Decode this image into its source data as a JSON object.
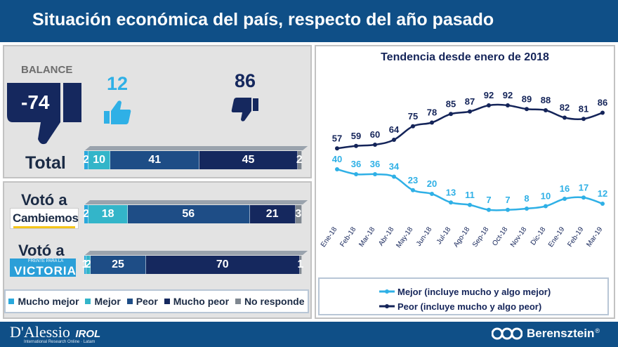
{
  "header": {
    "title": "Situación económica del país, respecto del año pasado"
  },
  "balance": {
    "label": "BALANCE",
    "value": "-74",
    "positive": "12",
    "negative": "86"
  },
  "rows": [
    {
      "label": "Total",
      "values": [
        2,
        10,
        41,
        45,
        2
      ],
      "labels": [
        "2",
        "10",
        "41",
        "45",
        "2"
      ]
    },
    {
      "label": "Votó a",
      "logo_text": "Cambiemos",
      "values": [
        2,
        18,
        56,
        21,
        3
      ],
      "labels": [
        "2",
        "18",
        "56",
        "21",
        "3"
      ]
    },
    {
      "label": "Votó a",
      "logo_text": "VICTORIA",
      "logo_small": "FRENTE PARA LA",
      "values": [
        1,
        2,
        25,
        70,
        1
      ],
      "labels": [
        "1",
        "2",
        "25",
        "70",
        "1"
      ]
    }
  ],
  "legend_bottom": [
    "Mucho mejor",
    "Mejor",
    "Peor",
    "Mucho peor",
    "No responde"
  ],
  "colors": {
    "mucho_mejor": "#29a8dc",
    "mejor": "#33b5c9",
    "peor": "#1e4d86",
    "mucho_peor": "#15285e",
    "no_responde": "#7f8790",
    "header": "#0f4f87",
    "line_mejor": "#2fb0e6",
    "line_peor": "#142459"
  },
  "chart_data": {
    "type": "line",
    "title": "Tendencia desde enero de 2018",
    "categories": [
      "Ene-18",
      "Feb-18",
      "Mar-18",
      "Abr-18",
      "May-18",
      "Jun-18",
      "Jul-18",
      "Ago-18",
      "Sep-18",
      "Oct-18",
      "Nov-18",
      "Dic-18",
      "Ene-19",
      "Feb-19",
      "Mar-19"
    ],
    "series": [
      {
        "name": "Mejor (incluye mucho y algo mejor)",
        "values": [
          40,
          36,
          36,
          34,
          23,
          20,
          13,
          11,
          7,
          7,
          8,
          10,
          16,
          17,
          12
        ]
      },
      {
        "name": "Peor (incluye mucho y algo peor)",
        "values": [
          57,
          59,
          60,
          64,
          75,
          78,
          85,
          87,
          92,
          92,
          89,
          88,
          82,
          81,
          86
        ]
      }
    ],
    "ylim": [
      0,
      100
    ],
    "grid": false,
    "legend": "bottom"
  },
  "footer": {
    "left_brand": "D'Alessio",
    "left_brand2": "IROL",
    "left_sub": "International Research Online · Latam",
    "right_brand": "Berensztein",
    "right_mark": "®"
  }
}
